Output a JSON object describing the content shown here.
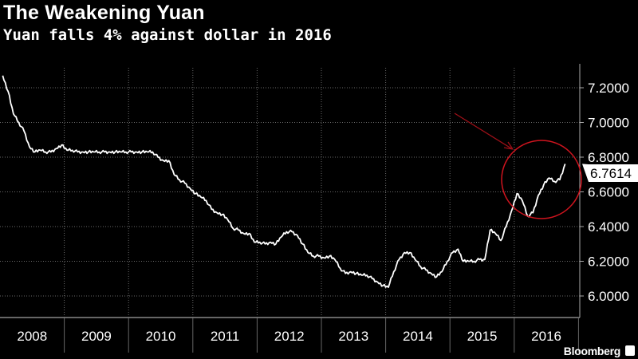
{
  "header": {
    "title": "The Weakening Yuan",
    "subtitle": "Yuan falls 4% against dollar in 2016"
  },
  "brand": {
    "name": "Bloomberg",
    "icon": "bloomberg-chart-icon"
  },
  "colors": {
    "background": "#000000",
    "line": "#ffffff",
    "annotation": "#d0141e",
    "grid": "#6a6a6a"
  },
  "chart_data": {
    "type": "line",
    "title": "The Weakening Yuan",
    "subtitle": "Yuan falls 4% against dollar in 2016",
    "xlabel": "",
    "ylabel": "",
    "ylim": [
      5.93,
      7.33
    ],
    "y_axis_position": "right",
    "yticks": [
      "6.0000",
      "6.2000",
      "6.4000",
      "6.6000",
      "6.8000",
      "7.0000",
      "7.2000"
    ],
    "xticks": [
      "2008",
      "2009",
      "2010",
      "2011",
      "2012",
      "2013",
      "2014",
      "2015",
      "2016"
    ],
    "grid": true,
    "last_value_label": "6.7614",
    "annotations": [
      "red arrow pointing to 2016 rise",
      "red circle around 2016 rise"
    ],
    "series": [
      {
        "x": [
          "2008-01",
          "2008-02",
          "2008-03",
          "2008-04",
          "2008-05",
          "2008-06",
          "2008-07",
          "2008-08",
          "2008-09",
          "2008-10",
          "2008-11",
          "2008-12",
          "2009-01",
          "2009-02",
          "2009-03",
          "2009-04",
          "2009-05",
          "2009-06",
          "2009-07",
          "2009-08",
          "2009-09",
          "2009-10",
          "2009-11",
          "2009-12",
          "2010-01",
          "2010-02",
          "2010-03",
          "2010-04",
          "2010-05",
          "2010-06",
          "2010-07",
          "2010-08",
          "2010-09",
          "2010-10",
          "2010-11",
          "2010-12",
          "2011-01",
          "2011-02",
          "2011-03",
          "2011-04",
          "2011-05",
          "2011-06",
          "2011-07",
          "2011-08",
          "2011-09",
          "2011-10",
          "2011-11",
          "2011-12",
          "2012-01",
          "2012-02",
          "2012-03",
          "2012-04",
          "2012-05",
          "2012-06",
          "2012-07",
          "2012-08",
          "2012-09",
          "2012-10",
          "2012-11",
          "2012-12",
          "2013-01",
          "2013-02",
          "2013-03",
          "2013-04",
          "2013-05",
          "2013-06",
          "2013-07",
          "2013-08",
          "2013-09",
          "2013-10",
          "2013-11",
          "2013-12",
          "2014-01",
          "2014-02",
          "2014-03",
          "2014-04",
          "2014-05",
          "2014-06",
          "2014-07",
          "2014-08",
          "2014-09",
          "2014-10",
          "2014-11",
          "2014-12",
          "2015-01",
          "2015-02",
          "2015-03",
          "2015-04",
          "2015-05",
          "2015-06",
          "2015-07",
          "2015-08",
          "2015-09",
          "2015-10",
          "2015-11",
          "2015-12",
          "2016-01",
          "2016-02",
          "2016-03",
          "2016-04",
          "2016-05",
          "2016-06",
          "2016-07",
          "2016-08",
          "2016-09",
          "2016-10"
        ],
        "y": [
          7.27,
          7.18,
          7.05,
          7.0,
          6.95,
          6.86,
          6.83,
          6.84,
          6.83,
          6.83,
          6.85,
          6.87,
          6.84,
          6.84,
          6.83,
          6.83,
          6.83,
          6.83,
          6.83,
          6.83,
          6.83,
          6.83,
          6.83,
          6.83,
          6.83,
          6.83,
          6.83,
          6.83,
          6.83,
          6.8,
          6.78,
          6.78,
          6.7,
          6.67,
          6.65,
          6.62,
          6.59,
          6.57,
          6.55,
          6.5,
          6.48,
          6.47,
          6.44,
          6.39,
          6.38,
          6.36,
          6.36,
          6.31,
          6.31,
          6.3,
          6.31,
          6.3,
          6.34,
          6.37,
          6.37,
          6.35,
          6.3,
          6.25,
          6.23,
          6.23,
          6.22,
          6.23,
          6.21,
          6.16,
          6.13,
          6.14,
          6.13,
          6.12,
          6.12,
          6.1,
          6.08,
          6.06,
          6.05,
          6.14,
          6.21,
          6.25,
          6.25,
          6.21,
          6.17,
          6.15,
          6.13,
          6.11,
          6.14,
          6.2,
          6.25,
          6.27,
          6.2,
          6.2,
          6.2,
          6.21,
          6.21,
          6.38,
          6.36,
          6.32,
          6.4,
          6.49,
          6.59,
          6.55,
          6.46,
          6.48,
          6.58,
          6.64,
          6.68,
          6.66,
          6.67,
          6.7614
        ]
      }
    ]
  }
}
